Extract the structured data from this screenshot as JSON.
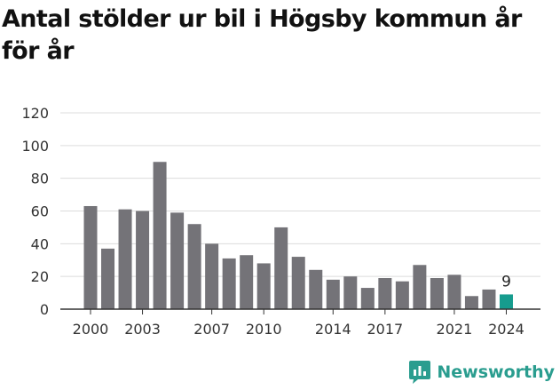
{
  "title": "Antal stölder ur bil i Högsby kommun år för år",
  "brand": {
    "name": "Newsworthy",
    "color": "#2a9d8f",
    "icon": "newsworthy-logo-icon"
  },
  "colors": {
    "bar": "#747378",
    "highlight": "#169c8e",
    "grid": "#dcdcdc",
    "axis": "#333333"
  },
  "chart_data": {
    "type": "bar",
    "title": "Antal stölder ur bil i Högsby kommun år för år",
    "xlabel": "",
    "ylabel": "",
    "categories": [
      "2000",
      "2001",
      "2002",
      "2003",
      "2004",
      "2005",
      "2006",
      "2007",
      "2008",
      "2009",
      "2010",
      "2011",
      "2012",
      "2013",
      "2014",
      "2015",
      "2016",
      "2017",
      "2018",
      "2019",
      "2020",
      "2021",
      "2022",
      "2023",
      "2024"
    ],
    "values": [
      63,
      37,
      61,
      60,
      90,
      59,
      52,
      40,
      31,
      33,
      28,
      50,
      32,
      24,
      18,
      20,
      13,
      19,
      17,
      27,
      19,
      21,
      8,
      12,
      9
    ],
    "x_tick_labels": [
      "2000",
      "2003",
      "2007",
      "2010",
      "2014",
      "2017",
      "2021",
      "2024"
    ],
    "yticks": [
      0,
      20,
      40,
      60,
      80,
      100,
      120
    ],
    "ylim": [
      0,
      120
    ],
    "highlight_index": 24,
    "data_labels": [
      {
        "category": "2024",
        "text": "9"
      }
    ],
    "grid": true,
    "legend": "none"
  }
}
